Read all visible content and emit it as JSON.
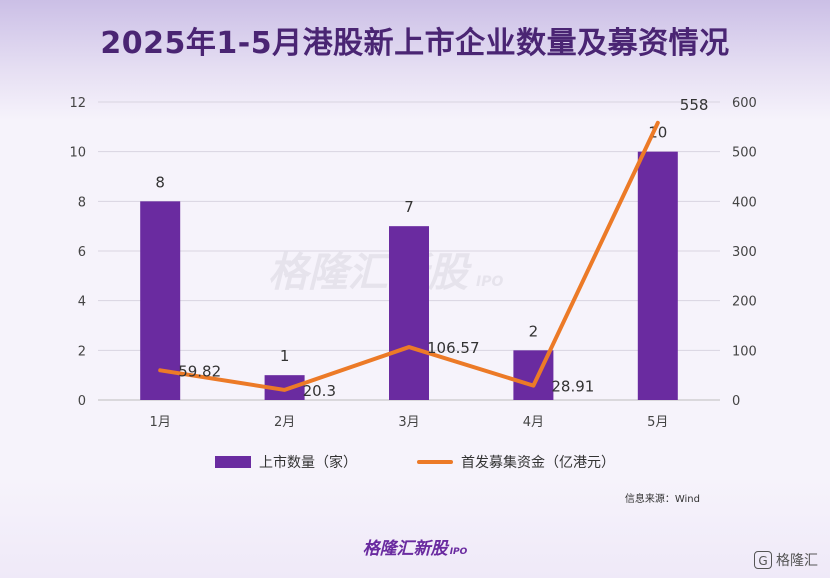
{
  "title": "2025年1-5月港股新上市企业数量及募资情况",
  "watermark": {
    "text": "格隆汇新股",
    "sub": "IPO"
  },
  "source": "信息来源：Wind",
  "footer_brand": {
    "text": "格隆汇新股",
    "sub": "IPO"
  },
  "corner_logo": {
    "icon": "G",
    "text": "格隆汇"
  },
  "colors": {
    "bar": "#6a2ba0",
    "line": "#ec7a27",
    "title": "#4a2573"
  },
  "chart_data": {
    "type": "bar",
    "categories": [
      "1月",
      "2月",
      "3月",
      "4月",
      "5月"
    ],
    "series": [
      {
        "name": "上市数量（家）",
        "type": "bar",
        "axis": "left",
        "values": [
          8,
          1,
          7,
          2,
          10
        ],
        "labels": [
          "8",
          "1",
          "7",
          "2",
          "10"
        ]
      },
      {
        "name": "首发募集资金（亿港元）",
        "type": "line",
        "axis": "right",
        "values": [
          59.82,
          20.3,
          106.57,
          28.91,
          558
        ],
        "labels": [
          "59.82",
          "20.3",
          "106.57",
          "28.91",
          "558"
        ]
      }
    ],
    "y_left": {
      "min": 0,
      "max": 12,
      "ticks": [
        "0",
        "2",
        "4",
        "6",
        "8",
        "10",
        "12"
      ]
    },
    "y_right": {
      "min": 0,
      "max": 600,
      "ticks": [
        "0",
        "100",
        "200",
        "300",
        "400",
        "500",
        "600"
      ]
    },
    "grid": true,
    "legend": "bottom"
  }
}
